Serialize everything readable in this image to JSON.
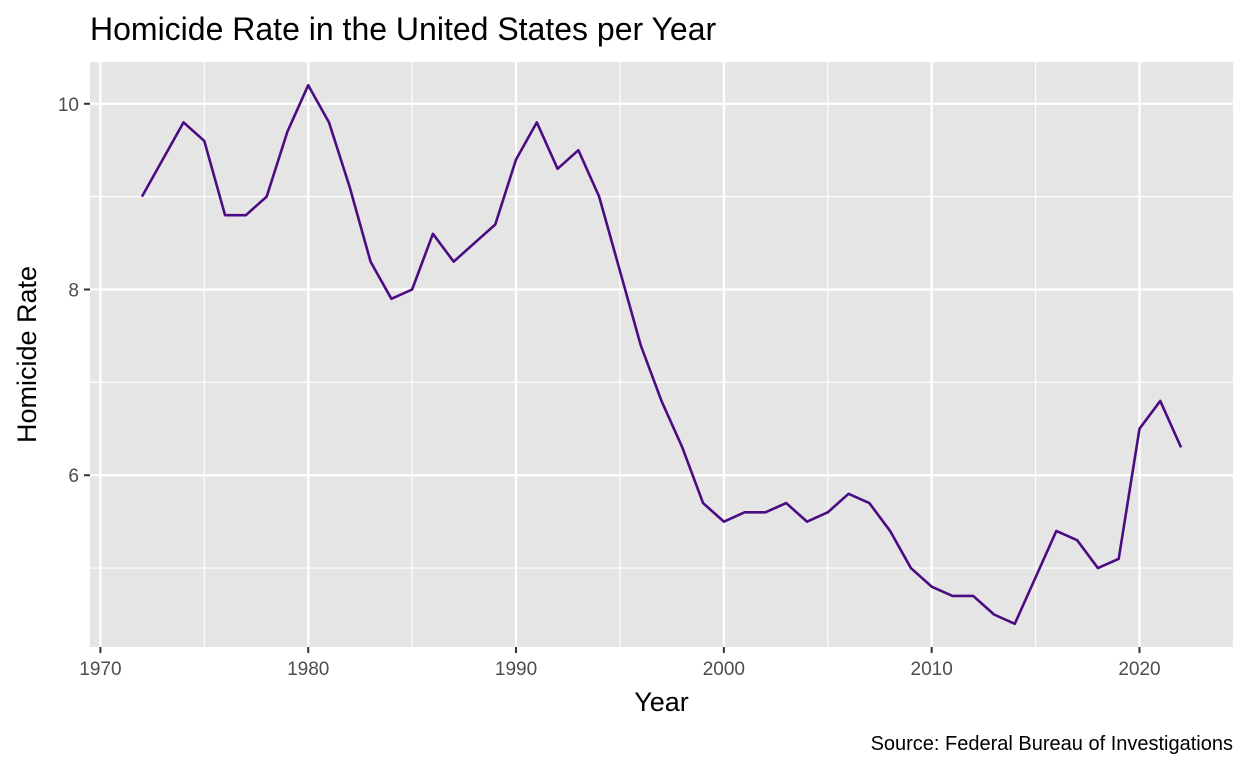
{
  "chart_data": {
    "type": "line",
    "title": "Homicide Rate in the United States per Year",
    "xlabel": "Year",
    "ylabel": "Homicide Rate",
    "caption": "Source: Federal Bureau of Investigations",
    "xlim": [
      1969.5,
      2024.5
    ],
    "ylim": [
      4.15,
      10.45
    ],
    "x_ticks": [
      1970,
      1980,
      1990,
      2000,
      2010,
      2020
    ],
    "y_ticks": [
      6,
      8,
      10
    ],
    "grid": true,
    "background_color": "#e5e5e5",
    "grid_color": "#ffffff",
    "line_color": "#4b0c82",
    "series": [
      {
        "x": [
          1972,
          1973,
          1974,
          1975,
          1976,
          1977,
          1978,
          1979,
          1980,
          1981,
          1982,
          1983,
          1984,
          1985,
          1986,
          1987,
          1988,
          1989,
          1990,
          1991,
          1992,
          1993,
          1994,
          1995,
          1996,
          1997,
          1998,
          1999,
          2000,
          2001,
          2002,
          2003,
          2004,
          2005,
          2006,
          2007,
          2008,
          2009,
          2010,
          2011,
          2012,
          2013,
          2014,
          2015,
          2016,
          2017,
          2018,
          2019,
          2020,
          2021,
          2022
        ],
        "values": [
          9.0,
          9.4,
          9.8,
          9.6,
          8.8,
          8.8,
          9.0,
          9.7,
          10.2,
          9.8,
          9.1,
          8.3,
          7.9,
          8.0,
          8.6,
          8.3,
          8.5,
          8.7,
          9.4,
          9.8,
          9.3,
          9.5,
          9.0,
          8.2,
          7.4,
          6.8,
          6.3,
          5.7,
          5.5,
          5.6,
          5.6,
          5.7,
          5.5,
          5.6,
          5.8,
          5.7,
          5.4,
          5.0,
          4.8,
          4.7,
          4.7,
          4.5,
          4.4,
          4.9,
          5.4,
          5.3,
          5.0,
          5.1,
          6.5,
          6.8,
          6.3
        ]
      }
    ]
  }
}
